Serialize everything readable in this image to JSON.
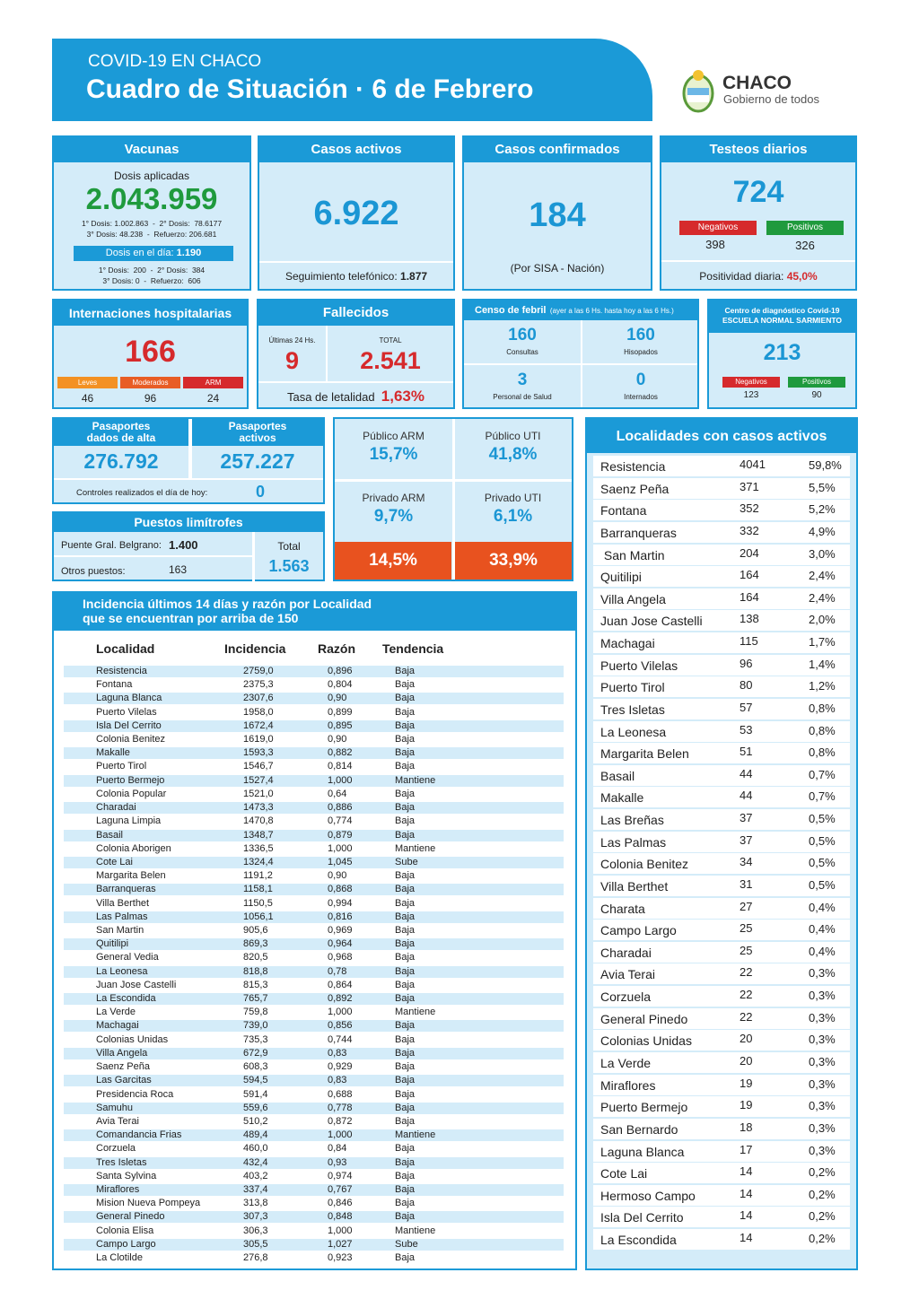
{
  "header": {
    "kicker": "COVID-19 EN CHACO",
    "title": "Cuadro de Situación · 6 de Febrero",
    "logo_name": "CHACO",
    "logo_tagline": "Gobierno de todos"
  },
  "vacunas": {
    "title": "Vacunas",
    "label": "Dosis aplicadas",
    "total": "2.043.959",
    "detail": [
      "1° Dosis: 1.002.863  -  2° Dosis:  78.6177",
      "3° Dosis: 48.238  -  Refuerzo: 206.681"
    ],
    "day_label": "Dosis en el día:",
    "day_value": "1.190",
    "day_detail": [
      "1° Dosis:  200  -  2° Dosis:  384",
      "3° Dosis: 0  -  Refuerzo:  606"
    ]
  },
  "casos_activos": {
    "title": "Casos activos",
    "value": "6.922",
    "note_label": "Seguimiento telefónico:",
    "note_value": "1.877"
  },
  "casos_confirmados": {
    "title": "Casos confirmados",
    "value": "184",
    "note": "(Por SISA - Nación)"
  },
  "testeos": {
    "title": "Testeos diarios",
    "value": "724",
    "negativos_label": "Negativos",
    "negativos": "398",
    "positivos_label": "Positivos",
    "positivos": "326",
    "positividad_label": "Positividad diaria:",
    "positividad": "45,0%"
  },
  "internaciones": {
    "title": "Internaciones hospitalarias",
    "value": "166",
    "items": [
      {
        "label": "Leves",
        "value": "46"
      },
      {
        "label": "Moderados",
        "value": "96"
      },
      {
        "label": "ARM",
        "value": "24"
      }
    ]
  },
  "fallecidos": {
    "title": "Fallecidos",
    "last_label": "Últimas 24 Hs.",
    "last": "9",
    "total_label": "TOTAL",
    "total": "2.541",
    "rate_label": "Tasa de letalidad",
    "rate": "1,63%"
  },
  "censo": {
    "title": "Censo de febril",
    "period": "(ayer a las 6 Hs. hasta hoy a las 6 Hs.)",
    "items": [
      {
        "value": "160",
        "label": "Consultas"
      },
      {
        "value": "160",
        "label": "Hisopados"
      },
      {
        "value": "3",
        "label": "Personal de Salud"
      },
      {
        "value": "0",
        "label": "Internados"
      }
    ]
  },
  "centro": {
    "title": [
      "Centro de diagnóstico Covid-19",
      "ESCUELA NORMAL SARMIENTO"
    ],
    "value": "213",
    "negativos_label": "Negativos",
    "negativos": "123",
    "positivos_label": "Positivos",
    "positivos": "90"
  },
  "pasaportes": {
    "alta_label": [
      "Pasaportes",
      "dados de alta"
    ],
    "alta": "276.792",
    "activos_label": [
      "Pasaportes",
      "activos"
    ],
    "activos": "257.227",
    "controles_label": "Controles realizados el día de hoy:",
    "controles": "0"
  },
  "puestos": {
    "title": "Puestos limítrofes",
    "belgrano_label": "Puente Gral. Belgrano:",
    "belgrano": "1.400",
    "otros_label": "Otros puestos:",
    "otros": "163",
    "total_label": "Total",
    "total": "1.563"
  },
  "camas": {
    "cells": [
      {
        "label": "Público ARM",
        "value": "15,7%"
      },
      {
        "label": "Público UTI",
        "value": "41,8%"
      },
      {
        "label": "Privado ARM",
        "value": "9,7%"
      },
      {
        "label": "Privado UTI",
        "value": "6,1%"
      }
    ],
    "totals": [
      "14,5%",
      "33,9%"
    ]
  },
  "incidencia": {
    "title": [
      "Incidencia últimos 14 días y razón por Localidad",
      "que se encuentran por arriba de 150"
    ],
    "headers": [
      "Localidad",
      "Incidencia",
      "Razón",
      "Tendencia"
    ],
    "rows": [
      [
        "Resistencia",
        "2759,0",
        "0,896",
        "Baja"
      ],
      [
        "Fontana",
        "2375,3",
        "0,804",
        "Baja"
      ],
      [
        "Laguna Blanca",
        "2307,6",
        "0,90",
        "Baja"
      ],
      [
        "Puerto Vilelas",
        "1958,0",
        "0,899",
        "Baja"
      ],
      [
        "Isla Del Cerrito",
        "1672,4",
        "0,895",
        "Baja"
      ],
      [
        "Colonia Benitez",
        "1619,0",
        "0,90",
        "Baja"
      ],
      [
        "Makalle",
        "1593,3",
        "0,882",
        "Baja"
      ],
      [
        "Puerto Tirol",
        "1546,7",
        "0,814",
        "Baja"
      ],
      [
        "Puerto Bermejo",
        "1527,4",
        "1,000",
        "Mantiene"
      ],
      [
        "Colonia Popular",
        "1521,0",
        "0,64",
        "Baja"
      ],
      [
        "Charadai",
        "1473,3",
        "0,886",
        "Baja"
      ],
      [
        "Laguna Limpia",
        "1470,8",
        "0,774",
        "Baja"
      ],
      [
        "Basail",
        "1348,7",
        "0,879",
        "Baja"
      ],
      [
        "Colonia Aborigen",
        "1336,5",
        "1,000",
        "Mantiene"
      ],
      [
        "Cote Lai",
        "1324,4",
        "1,045",
        "Sube"
      ],
      [
        "Margarita Belen",
        "1191,2",
        "0,90",
        "Baja"
      ],
      [
        "Barranqueras",
        "1158,1",
        "0,868",
        "Baja"
      ],
      [
        "Villa Berthet",
        "1150,5",
        "0,994",
        "Baja"
      ],
      [
        "Las Palmas",
        "1056,1",
        "0,816",
        "Baja"
      ],
      [
        "San Martin",
        "905,6",
        "0,969",
        "Baja"
      ],
      [
        "Quitilipi",
        "869,3",
        "0,964",
        "Baja"
      ],
      [
        "General Vedia",
        "820,5",
        "0,968",
        "Baja"
      ],
      [
        "La Leonesa",
        "818,8",
        "0,78",
        "Baja"
      ],
      [
        "Juan Jose Castelli",
        "815,3",
        "0,864",
        "Baja"
      ],
      [
        "La Escondida",
        "765,7",
        "0,892",
        "Baja"
      ],
      [
        "La Verde",
        "759,8",
        "1,000",
        "Mantiene"
      ],
      [
        "Machagai",
        "739,0",
        "0,856",
        "Baja"
      ],
      [
        "Colonias Unidas",
        "735,3",
        "0,744",
        "Baja"
      ],
      [
        "Villa Angela",
        "672,9",
        "0,83",
        "Baja"
      ],
      [
        "Saenz Peña",
        "608,3",
        "0,929",
        "Baja"
      ],
      [
        "Las Garcitas",
        "594,5",
        "0,83",
        "Baja"
      ],
      [
        "Presidencia Roca",
        "591,4",
        "0,688",
        "Baja"
      ],
      [
        "Samuhu",
        "559,6",
        "0,778",
        "Baja"
      ],
      [
        "Avia Terai",
        "510,2",
        "0,872",
        "Baja"
      ],
      [
        "Comandancia Frias",
        "489,4",
        "1,000",
        "Mantiene"
      ],
      [
        "Corzuela",
        "460,0",
        "0,84",
        "Baja"
      ],
      [
        "Tres Isletas",
        "432,4",
        "0,93",
        "Baja"
      ],
      [
        "Santa Sylvina",
        "403,2",
        "0,974",
        "Baja"
      ],
      [
        "Miraflores",
        "337,4",
        "0,767",
        "Baja"
      ],
      [
        "Mision Nueva Pompeya",
        "313,8",
        "0,846",
        "Baja"
      ],
      [
        "General Pinedo",
        "307,3",
        "0,848",
        "Baja"
      ],
      [
        "Colonia Elisa",
        "306,3",
        "1,000",
        "Mantiene"
      ],
      [
        "Campo Largo",
        "305,5",
        "1,027",
        "Sube"
      ],
      [
        "La Clotilde",
        "276,8",
        "0,923",
        "Baja"
      ]
    ]
  },
  "localidades": {
    "title": "Localidades con casos activos",
    "rows": [
      [
        "Resistencia",
        "4041",
        "59,8%"
      ],
      [
        "Saenz Peña",
        "371",
        "5,5%"
      ],
      [
        "Fontana",
        "352",
        "5,2%"
      ],
      [
        "Barranqueras",
        "332",
        "4,9%"
      ],
      [
        " San Martin",
        "204",
        "3,0%"
      ],
      [
        "Quitilipi",
        "164",
        "2,4%"
      ],
      [
        "Villa Angela",
        "164",
        "2,4%"
      ],
      [
        "Juan Jose Castelli",
        "138",
        "2,0%"
      ],
      [
        "Machagai",
        "115",
        "1,7%"
      ],
      [
        "Puerto Vilelas",
        "96",
        "1,4%"
      ],
      [
        "Puerto Tirol",
        "80",
        "1,2%"
      ],
      [
        "Tres Isletas",
        "57",
        "0,8%"
      ],
      [
        "La Leonesa",
        "53",
        "0,8%"
      ],
      [
        "Margarita Belen",
        "51",
        "0,8%"
      ],
      [
        "Basail",
        "44",
        "0,7%"
      ],
      [
        "Makalle",
        "44",
        "0,7%"
      ],
      [
        "Las Breñas",
        "37",
        "0,5%"
      ],
      [
        "Las Palmas",
        "37",
        "0,5%"
      ],
      [
        "Colonia Benitez",
        "34",
        "0,5%"
      ],
      [
        "Villa Berthet",
        "31",
        "0,5%"
      ],
      [
        "Charata",
        "27",
        "0,4%"
      ],
      [
        "Campo Largo",
        "25",
        "0,4%"
      ],
      [
        "Charadai",
        "25",
        "0,4%"
      ],
      [
        "Avia Terai",
        "22",
        "0,3%"
      ],
      [
        "Corzuela",
        "22",
        "0,3%"
      ],
      [
        "General Pinedo",
        "22",
        "0,3%"
      ],
      [
        "Colonias Unidas",
        "20",
        "0,3%"
      ],
      [
        "La Verde",
        "20",
        "0,3%"
      ],
      [
        "Miraflores",
        "19",
        "0,3%"
      ],
      [
        "Puerto Bermejo",
        "19",
        "0,3%"
      ],
      [
        "San Bernardo",
        "18",
        "0,3%"
      ],
      [
        "Laguna Blanca",
        "17",
        "0,3%"
      ],
      [
        "Cote Lai",
        "14",
        "0,2%"
      ],
      [
        "Hermoso Campo",
        "14",
        "0,2%"
      ],
      [
        "Isla Del Cerrito",
        "14",
        "0,2%"
      ],
      [
        "La Escondida",
        "14",
        "0,2%"
      ]
    ]
  }
}
